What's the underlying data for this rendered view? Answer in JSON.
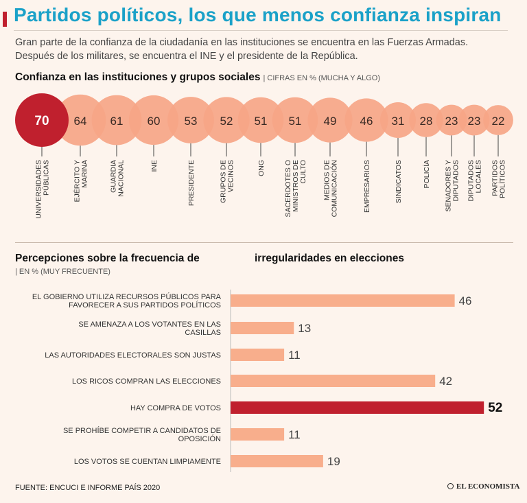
{
  "header": {
    "title": "Partidos políticos, los que menos confianza inspiran",
    "subtitle": "Gran parte de la confianza de la ciudadanía en las instituciones se encuentra en las Fuerzas Armadas. Después de los militares, se encuentra el INE y el presidente de la República."
  },
  "section1": {
    "title": "Confianza en las instituciones y grupos sociales",
    "note": "| CIFRAS EN % (MUCHA Y ALGO)"
  },
  "section2": {
    "title_a": "Percepciones sobre la frecuencia de",
    "title_b": "irregularidades en elecciones",
    "note": "| EN % (MUY FRECUENTE)"
  },
  "footer": {
    "source": "FUENTE: ENCUCI E INFORME PAÍS 2020",
    "logo": "EL ECONOMISTA"
  },
  "colors": {
    "accent": "#c0202e",
    "bubble": "#f6a587",
    "bubble_overlap": "#ef8a6c",
    "bar": "#f8ae8c",
    "title": "#1aa1c8"
  },
  "chart_data": [
    {
      "type": "bubble",
      "title": "Confianza en las instituciones y grupos sociales",
      "unit": "% (mucha y algo)",
      "categories": [
        [
          "UNIVERSIDADES",
          "PÚBLICAS"
        ],
        [
          "EJÉRCITO Y",
          "MARINA"
        ],
        [
          "GUARDIA",
          "NACIONAL"
        ],
        [
          "INE"
        ],
        [
          "PRESIDENTE"
        ],
        [
          "GRUPOS DE",
          "VECINOS"
        ],
        [
          "ONG"
        ],
        [
          "SACERDOTES O",
          "MINISTROS DE",
          "CULTO"
        ],
        [
          "MEDIOS DE",
          "COMUNICACIÓN"
        ],
        [
          "EMPRESARIOS"
        ],
        [
          "SINDICATOS"
        ],
        [
          "POLICÍA"
        ],
        [
          "SENADORES Y",
          "DIPUTADOS"
        ],
        [
          "DIPUTADOS",
          "LOCALES"
        ],
        [
          "PARTIDOS",
          "POLÍTICOS"
        ]
      ],
      "values": [
        70,
        64,
        61,
        60,
        53,
        52,
        51,
        51,
        49,
        46,
        31,
        28,
        23,
        23,
        22
      ],
      "highlight_index": 0
    },
    {
      "type": "bar",
      "orientation": "horizontal",
      "title": "Percepciones sobre la frecuencia de irregularidades en elecciones",
      "unit": "% (muy frecuente)",
      "categories": [
        [
          "EL GOBIERNO UTILIZA RECURSOS PÚBLICOS PARA",
          "FAVORECER A SUS PARTIDOS POLÍTICOS"
        ],
        [
          "SE AMENAZA A LOS VOTANTES EN LAS",
          "CASILLAS"
        ],
        [
          "LAS AUTORIDADES ELECTORALES SON JUSTAS"
        ],
        [
          "LOS RICOS COMPRAN LAS ELECCIONES"
        ],
        [
          "HAY COMPRA DE VOTOS"
        ],
        [
          "SE PROHÍBE COMPETIR A CANDIDATOS DE",
          "OPOSICIÓN"
        ],
        [
          "LOS VOTOS SE CUENTAN LIMPIAMENTE"
        ]
      ],
      "values": [
        46,
        13,
        11,
        42,
        52,
        11,
        19
      ],
      "highlight_index": 4
    }
  ]
}
